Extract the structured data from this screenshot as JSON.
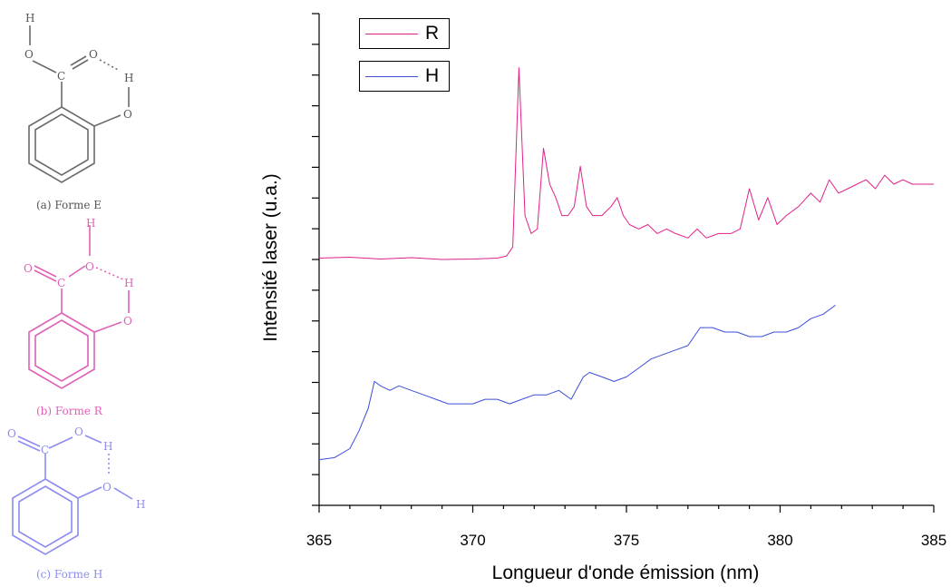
{
  "molecules": [
    {
      "caption": "(a) Forme E",
      "color": "#6a6a6a",
      "atoms": {
        "h_top": "H",
        "o_oh": "O",
        "o_dbl": "O",
        "c": "C",
        "h_side": "H",
        "o_ring": "O"
      }
    },
    {
      "caption": "(b) Forme R",
      "color": "#e060b8",
      "atoms": {
        "h_top": "H",
        "o_oh": "O",
        "o_dbl": "O",
        "c": "C",
        "h_side": "H",
        "o_ring": "O"
      }
    },
    {
      "caption": "(c) Forme H",
      "color": "#8c8cf0",
      "atoms": {
        "h_top": "H",
        "o_oh": "O",
        "o_dbl": "O",
        "c": "C",
        "h_side": "H",
        "o_ring": "O"
      }
    }
  ],
  "chart_data": {
    "type": "line",
    "xlabel": "Longueur d'onde émission (nm)",
    "ylabel": "Intensité laser (u.a.)",
    "xlim": [
      365,
      385
    ],
    "xticks": [
      "365",
      "370",
      "375",
      "380",
      "385"
    ],
    "ylim": [
      0,
      1
    ],
    "y_tick_labels": false,
    "grid": false,
    "legend_position": "top-left",
    "series": [
      {
        "name": "R",
        "color": "#e0218a",
        "x": [
          365.0,
          366.0,
          367.0,
          368.0,
          369.0,
          370.0,
          370.8,
          371.1,
          371.3,
          371.5,
          371.7,
          371.9,
          372.1,
          372.3,
          372.5,
          372.7,
          372.9,
          373.1,
          373.3,
          373.5,
          373.7,
          373.9,
          374.2,
          374.5,
          374.7,
          374.9,
          375.1,
          375.4,
          375.7,
          376.0,
          376.3,
          376.6,
          377.0,
          377.3,
          377.6,
          378.0,
          378.4,
          378.7,
          379.0,
          379.3,
          379.6,
          379.9,
          380.2,
          380.6,
          381.0,
          381.3,
          381.6,
          381.9,
          382.2,
          382.5,
          382.8,
          383.1,
          383.4,
          383.7,
          384.0,
          384.3,
          384.6,
          385.0
        ],
        "y": [
          0.505,
          0.507,
          0.503,
          0.506,
          0.502,
          0.503,
          0.505,
          0.51,
          0.53,
          0.93,
          0.6,
          0.56,
          0.57,
          0.75,
          0.67,
          0.64,
          0.6,
          0.6,
          0.62,
          0.71,
          0.62,
          0.6,
          0.6,
          0.62,
          0.64,
          0.6,
          0.58,
          0.57,
          0.58,
          0.56,
          0.57,
          0.56,
          0.55,
          0.57,
          0.55,
          0.56,
          0.56,
          0.57,
          0.66,
          0.59,
          0.64,
          0.58,
          0.6,
          0.62,
          0.65,
          0.63,
          0.68,
          0.65,
          0.66,
          0.67,
          0.68,
          0.66,
          0.69,
          0.67,
          0.68,
          0.67,
          0.67,
          0.67
        ]
      },
      {
        "name": "H",
        "color": "#3b4fd9",
        "x": [
          365.0,
          365.5,
          366.0,
          366.3,
          366.6,
          366.8,
          367.0,
          367.3,
          367.6,
          368.0,
          368.4,
          368.8,
          369.2,
          369.6,
          370.0,
          370.4,
          370.8,
          371.2,
          371.6,
          372.0,
          372.4,
          372.8,
          373.2,
          373.6,
          373.8,
          374.2,
          374.6,
          375.0,
          375.4,
          375.8,
          376.2,
          376.6,
          377.0,
          377.4,
          377.8,
          378.2,
          378.6,
          379.0,
          379.4,
          379.8,
          380.2,
          380.6,
          381.0,
          381.4,
          381.8
        ],
        "y": [
          0.055,
          0.06,
          0.08,
          0.12,
          0.17,
          0.23,
          0.22,
          0.21,
          0.22,
          0.21,
          0.2,
          0.19,
          0.18,
          0.18,
          0.18,
          0.19,
          0.19,
          0.18,
          0.19,
          0.2,
          0.2,
          0.21,
          0.19,
          0.24,
          0.25,
          0.24,
          0.23,
          0.24,
          0.26,
          0.28,
          0.29,
          0.3,
          0.31,
          0.35,
          0.35,
          0.34,
          0.34,
          0.33,
          0.33,
          0.34,
          0.34,
          0.35,
          0.37,
          0.38,
          0.4
        ]
      }
    ]
  }
}
